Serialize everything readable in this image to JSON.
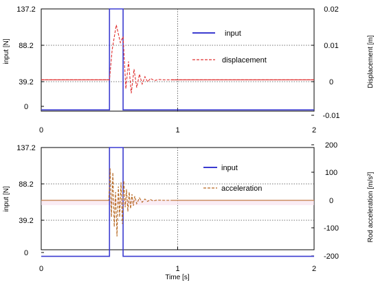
{
  "chart_data": [
    {
      "type": "line",
      "xlabel": "",
      "ylabel": "input [N]",
      "y2label": "Displacement [m]",
      "xlim": [
        0,
        2
      ],
      "ylim": [
        -20,
        137.2
      ],
      "y2lim": [
        -0.011,
        0.02
      ],
      "xticks": [
        "0",
        "1",
        "2"
      ],
      "yticks": [
        "137.2",
        "88.2",
        "39.2",
        "0"
      ],
      "y2ticks": [
        "0.02",
        "0.01",
        "0",
        "-0.01"
      ],
      "grid": "dotted at x=1 and y=88.2, 39.2",
      "legend": "top-right",
      "legend_entries": [
        "input",
        "displacement"
      ],
      "colors": {
        "input": "#3a3ad0",
        "response": "#e03030"
      },
      "series": [
        {
          "name": "input",
          "axis": "left",
          "style": "solid",
          "x": [
            0,
            0.5,
            0.5,
            0.6,
            0.6,
            2
          ],
          "y": [
            -5,
            -5,
            137.2,
            137.2,
            -5,
            -5
          ]
        },
        {
          "name": "displacement",
          "axis": "right",
          "style": "dashed",
          "x": [
            0,
            0.5,
            0.52,
            0.55,
            0.58,
            0.6,
            0.62,
            0.64,
            0.66,
            0.68,
            0.7,
            0.72,
            0.74,
            0.76,
            0.78,
            0.8,
            0.83,
            0.86,
            0.9,
            0.95,
            1,
            2
          ],
          "y": [
            0,
            0,
            0.0085,
            0.0155,
            0.0105,
            0.0122,
            -0.0025,
            0.0052,
            -0.0038,
            0.003,
            -0.0022,
            0.0016,
            -0.0012,
            0.0009,
            -0.0006,
            0.0004,
            -0.0002,
            0.0001,
            0,
            0,
            0,
            0
          ]
        }
      ]
    },
    {
      "type": "line",
      "xlabel": "Time [s]",
      "ylabel": "input [N]",
      "y2label": "Rod acceleration [m/s²]",
      "xlim": [
        0,
        2
      ],
      "ylim": [
        -20,
        137.2
      ],
      "y2lim": [
        -200,
        200
      ],
      "xticks": [
        "0",
        "1",
        "2"
      ],
      "yticks": [
        "137.2",
        "88.2",
        "39.2",
        "0"
      ],
      "y2ticks": [
        "200",
        "100",
        "0",
        "-100",
        "-200"
      ],
      "grid": "dotted at x=1 and y2=50, -50",
      "legend": "top-right",
      "legend_entries": [
        "input",
        "acceleration"
      ],
      "colors": {
        "input": "#3a3ad0",
        "response": "#b5651d"
      },
      "series": [
        {
          "name": "input",
          "axis": "left",
          "style": "solid",
          "x": [
            0,
            0.5,
            0.5,
            0.6,
            0.6,
            2
          ],
          "y": [
            -5,
            -5,
            137.2,
            137.2,
            -5,
            -5
          ]
        },
        {
          "name": "acceleration",
          "axis": "right",
          "style": "dashed",
          "x": [
            0,
            0.495,
            0.505,
            0.515,
            0.525,
            0.535,
            0.545,
            0.555,
            0.565,
            0.575,
            0.585,
            0.595,
            0.605,
            0.615,
            0.625,
            0.635,
            0.645,
            0.655,
            0.665,
            0.675,
            0.685,
            0.7,
            0.72,
            0.74,
            0.76,
            0.78,
            0.8,
            0.82,
            0.85,
            0.9,
            1,
            2
          ],
          "y": [
            0,
            0,
            115,
            -60,
            100,
            -95,
            30,
            -130,
            50,
            -60,
            65,
            -85,
            70,
            -25,
            40,
            -40,
            30,
            -30,
            22,
            -20,
            15,
            -12,
            9,
            -7,
            5,
            -4,
            3,
            -2,
            1,
            0,
            0,
            0
          ]
        }
      ]
    }
  ]
}
